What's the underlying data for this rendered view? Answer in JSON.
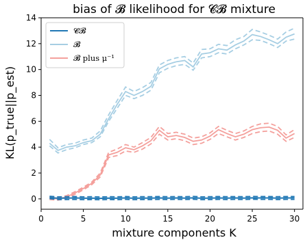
{
  "chart_data": {
    "type": "line",
    "title": "bias of 𝓑 likelihood for 𝓒𝓑 mixture",
    "xlabel": "mixture components K",
    "ylabel": "KL(p_true||p_est)",
    "xlim": [
      0,
      31
    ],
    "ylim": [
      -0.8,
      14
    ],
    "xticks": [
      0,
      5,
      10,
      15,
      20,
      25,
      30
    ],
    "yticks": [
      0,
      2,
      4,
      6,
      8,
      10,
      12,
      14
    ],
    "legend_position": "upper-left",
    "x": [
      1,
      2,
      3,
      4,
      5,
      6,
      7,
      8,
      9,
      10,
      11,
      12,
      13,
      14,
      15,
      16,
      17,
      18,
      19,
      20,
      21,
      22,
      23,
      24,
      25,
      26,
      27,
      28,
      29,
      30
    ],
    "series": [
      {
        "name": "𝓒𝓑",
        "color": "#1f77b4",
        "values": [
          0.1,
          0.05,
          0.06,
          0.07,
          0.05,
          0.06,
          0.04,
          0.06,
          0.05,
          0.07,
          0.05,
          0.06,
          0.06,
          0.07,
          0.06,
          0.07,
          0.06,
          0.08,
          0.05,
          0.06,
          0.07,
          0.06,
          0.07,
          0.06,
          0.08,
          0.07,
          0.07,
          0.06,
          0.07,
          0.07
        ],
        "lower": [
          0.02,
          -0.05,
          -0.05,
          -0.04,
          -0.06,
          -0.05,
          -0.07,
          -0.05,
          -0.06,
          -0.04,
          -0.06,
          -0.05,
          -0.05,
          -0.04,
          -0.05,
          -0.04,
          -0.05,
          -0.03,
          -0.06,
          -0.05,
          -0.04,
          -0.05,
          -0.04,
          -0.05,
          -0.03,
          -0.04,
          -0.04,
          -0.05,
          -0.04,
          -0.04
        ],
        "upper": [
          0.2,
          0.16,
          0.17,
          0.18,
          0.16,
          0.17,
          0.15,
          0.17,
          0.16,
          0.18,
          0.16,
          0.17,
          0.17,
          0.18,
          0.17,
          0.18,
          0.17,
          0.19,
          0.16,
          0.17,
          0.18,
          0.17,
          0.18,
          0.17,
          0.19,
          0.18,
          0.18,
          0.17,
          0.18,
          0.18
        ]
      },
      {
        "name": "𝓑",
        "color": "#a6cee3",
        "values": [
          4.3,
          3.75,
          4.0,
          4.1,
          4.35,
          4.5,
          5.0,
          6.2,
          7.3,
          8.3,
          8.0,
          8.3,
          8.7,
          10.05,
          10.4,
          10.6,
          10.7,
          10.2,
          11.2,
          11.3,
          11.6,
          11.5,
          11.9,
          12.2,
          12.7,
          12.55,
          12.3,
          12.0,
          12.5,
          12.75
        ],
        "lower": [
          4.1,
          3.55,
          3.8,
          3.95,
          4.2,
          4.35,
          4.8,
          6.0,
          7.0,
          8.0,
          7.75,
          8.0,
          8.4,
          9.75,
          10.1,
          10.3,
          10.4,
          9.95,
          10.9,
          11.0,
          11.3,
          11.2,
          11.6,
          11.9,
          12.3,
          12.25,
          12.0,
          11.7,
          12.2,
          12.35
        ],
        "upper": [
          4.6,
          3.95,
          4.2,
          4.3,
          4.55,
          4.7,
          5.25,
          6.5,
          7.6,
          8.65,
          8.3,
          8.6,
          9.0,
          10.35,
          10.7,
          10.9,
          11.0,
          10.5,
          11.55,
          11.6,
          11.95,
          11.85,
          12.3,
          12.55,
          13.1,
          12.9,
          12.65,
          12.35,
          12.9,
          13.2
        ]
      },
      {
        "name": "𝓑 plus μ⁻¹",
        "color": "#f4a09c",
        "values": [
          0.05,
          0.0,
          0.15,
          0.45,
          0.8,
          1.2,
          1.85,
          3.4,
          3.6,
          3.95,
          3.8,
          4.1,
          4.5,
          5.3,
          4.8,
          4.9,
          4.75,
          4.45,
          4.55,
          4.85,
          5.35,
          5.05,
          4.8,
          5.0,
          5.35,
          5.5,
          5.55,
          5.3,
          4.7,
          5.05
        ],
        "lower": [
          -0.05,
          -0.1,
          0.05,
          0.35,
          0.7,
          1.1,
          1.7,
          3.2,
          3.35,
          3.7,
          3.6,
          3.85,
          4.25,
          5.0,
          4.55,
          4.65,
          4.5,
          4.2,
          4.3,
          4.6,
          5.05,
          4.8,
          4.55,
          4.75,
          5.05,
          5.2,
          5.25,
          5.0,
          4.45,
          4.75
        ],
        "upper": [
          0.15,
          0.1,
          0.25,
          0.55,
          0.9,
          1.3,
          2.0,
          3.6,
          3.85,
          4.2,
          4.0,
          4.35,
          4.75,
          5.6,
          5.05,
          5.15,
          5.0,
          4.7,
          4.8,
          5.1,
          5.6,
          5.3,
          5.05,
          5.25,
          5.6,
          5.8,
          5.85,
          5.6,
          4.95,
          5.35
        ]
      }
    ]
  }
}
